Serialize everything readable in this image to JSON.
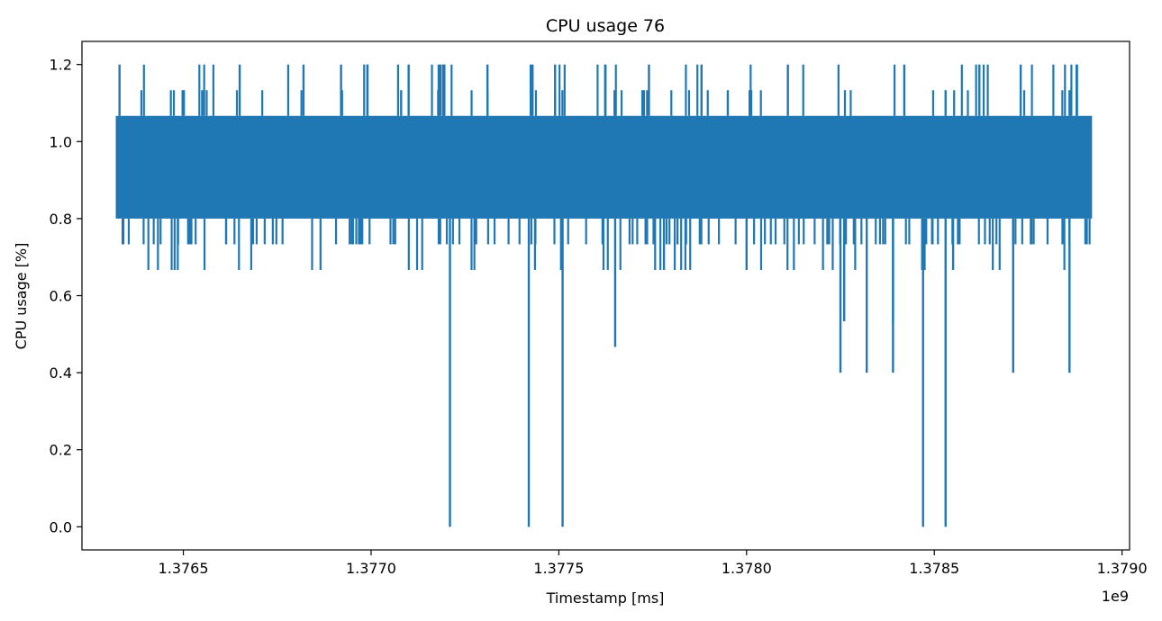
{
  "chart_data": {
    "type": "line",
    "title": "CPU usage 76",
    "xlabel": "Timestamp [ms]",
    "ylabel": "CPU usage [%]",
    "x_offset_label": "1e9",
    "xlim": [
      1376230000,
      1379020000
    ],
    "ylim": [
      -0.06,
      1.26
    ],
    "x_ticks": [
      1376500000,
      1377000000,
      1377500000,
      1378000000,
      1378500000,
      1379000000
    ],
    "x_tick_labels": [
      "1.3765",
      "1.3770",
      "1.3775",
      "1.3780",
      "1.3785",
      "1.3790"
    ],
    "y_ticks": [
      0.0,
      0.2,
      0.4,
      0.6,
      0.8,
      1.0,
      1.2
    ],
    "y_tick_labels": [
      "0.0",
      "0.2",
      "0.4",
      "0.6",
      "0.8",
      "1.0",
      "1.2"
    ],
    "grid": false,
    "series": [
      {
        "color": "#1f77b4",
        "x_range": [
          1376320000,
          1378920000
        ],
        "typical_band": [
          0.8,
          1.0667
        ],
        "spikes_high": [
          {
            "x": 1376330000,
            "y": 1.2
          },
          {
            "x": 1376650000,
            "y": 1.2
          },
          {
            "x": 1376820000,
            "y": 1.2
          },
          {
            "x": 1376920000,
            "y": 1.2
          },
          {
            "x": 1376990000,
            "y": 1.2
          },
          {
            "x": 1377100000,
            "y": 1.2
          },
          {
            "x": 1377180000,
            "y": 1.2
          },
          {
            "x": 1377310000,
            "y": 1.2
          },
          {
            "x": 1377430000,
            "y": 1.2
          },
          {
            "x": 1377490000,
            "y": 1.2
          },
          {
            "x": 1377740000,
            "y": 1.2
          },
          {
            "x": 1377880000,
            "y": 1.2
          },
          {
            "x": 1378110000,
            "y": 1.2
          },
          {
            "x": 1378420000,
            "y": 1.2
          },
          {
            "x": 1378620000,
            "y": 1.2
          },
          {
            "x": 1378730000,
            "y": 1.2
          },
          {
            "x": 1378880000,
            "y": 1.2
          },
          {
            "x": 1376550000,
            "y": 1.1333
          },
          {
            "x": 1377080000,
            "y": 1.1333
          },
          {
            "x": 1377950000,
            "y": 1.1333
          },
          {
            "x": 1378530000,
            "y": 1.1333
          },
          {
            "x": 1378860000,
            "y": 1.1333
          }
        ],
        "dips_low": [
          {
            "x": 1377210000,
            "y": 0.0
          },
          {
            "x": 1377420000,
            "y": 0.0
          },
          {
            "x": 1377510000,
            "y": 0.0
          },
          {
            "x": 1378470000,
            "y": 0.0
          },
          {
            "x": 1378530000,
            "y": 0.0
          },
          {
            "x": 1377650000,
            "y": 0.4667
          },
          {
            "x": 1378250000,
            "y": 0.4
          },
          {
            "x": 1378320000,
            "y": 0.4
          },
          {
            "x": 1378390000,
            "y": 0.4
          },
          {
            "x": 1378710000,
            "y": 0.4
          },
          {
            "x": 1378860000,
            "y": 0.4
          },
          {
            "x": 1378260000,
            "y": 0.5333
          },
          {
            "x": 1378390000,
            "y": 0.5333
          },
          {
            "x": 1377780000,
            "y": 0.6667
          },
          {
            "x": 1378000000,
            "y": 0.6667
          },
          {
            "x": 1378550000,
            "y": 0.6667
          }
        ]
      }
    ]
  }
}
